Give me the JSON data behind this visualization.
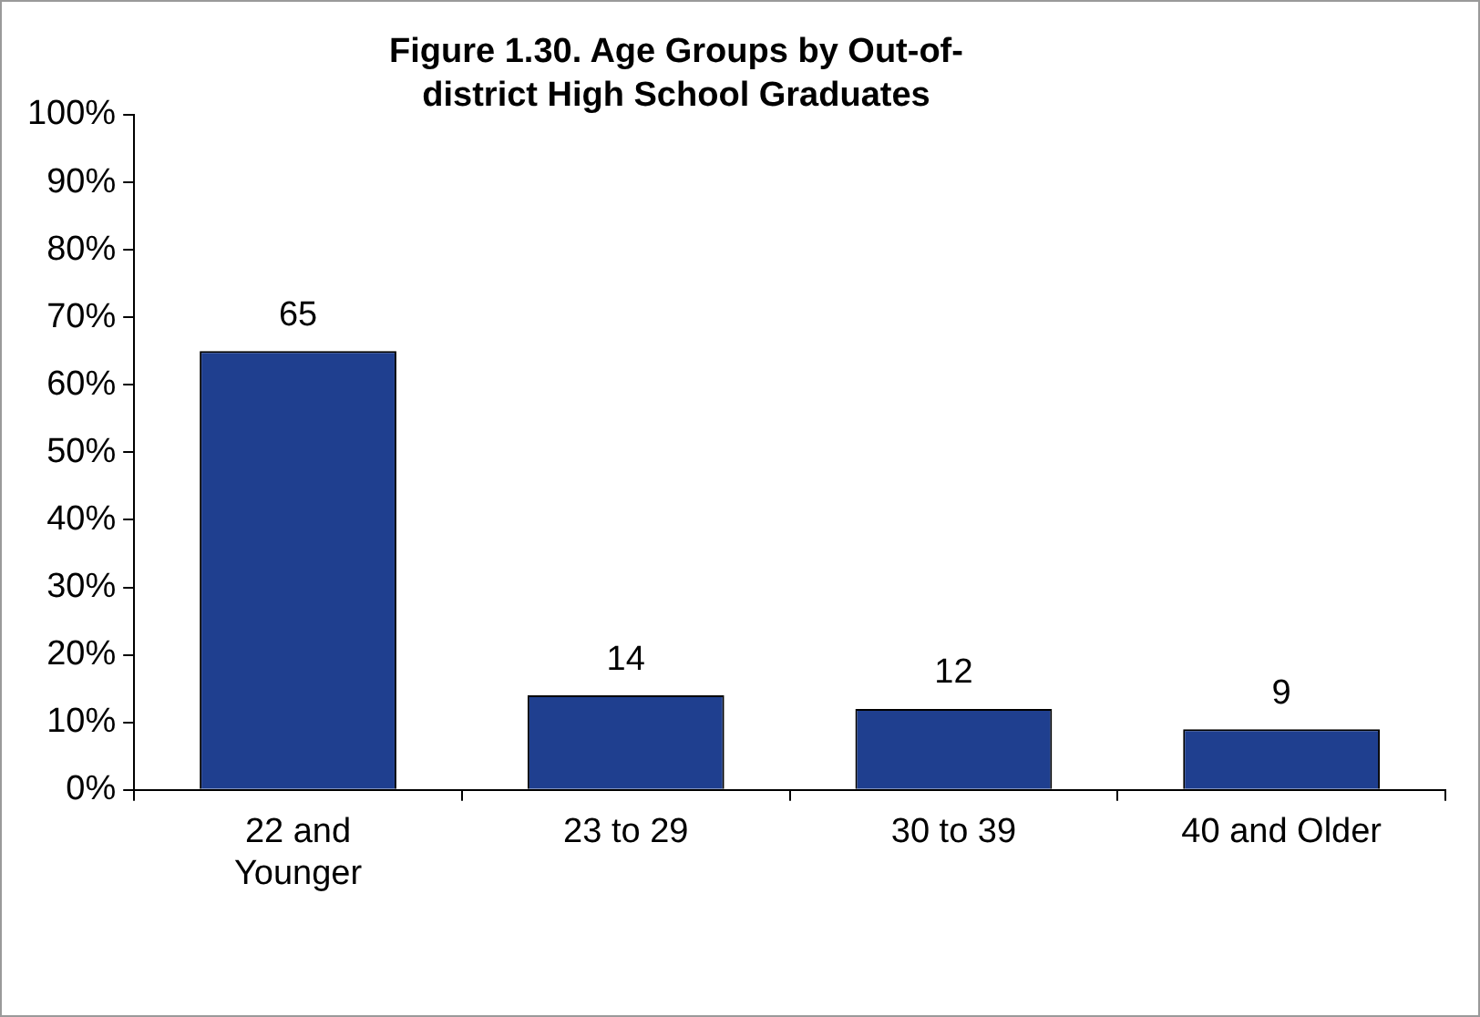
{
  "chart_data": {
    "type": "bar",
    "title": "Figure 1.30. Age Groups by Out-of-district High School Graduates",
    "categories": [
      "22 and Younger",
      "23 to 29",
      "30 to 39",
      "40 and Older"
    ],
    "values": [
      65,
      14,
      12,
      9
    ],
    "color": "#1f3f8f",
    "ylim": [
      0,
      100
    ],
    "yticks": [
      {
        "value": 0,
        "label": "0%"
      },
      {
        "value": 10,
        "label": "10%"
      },
      {
        "value": 20,
        "label": "20%"
      },
      {
        "value": 30,
        "label": "30%"
      },
      {
        "value": 40,
        "label": "40%"
      },
      {
        "value": 50,
        "label": "50%"
      },
      {
        "value": 60,
        "label": "60%"
      },
      {
        "value": 70,
        "label": "70%"
      },
      {
        "value": 80,
        "label": "80%"
      },
      {
        "value": 90,
        "label": "90%"
      },
      {
        "value": 100,
        "label": "100%"
      }
    ],
    "data_labels": true,
    "grid": false,
    "legend": false
  }
}
